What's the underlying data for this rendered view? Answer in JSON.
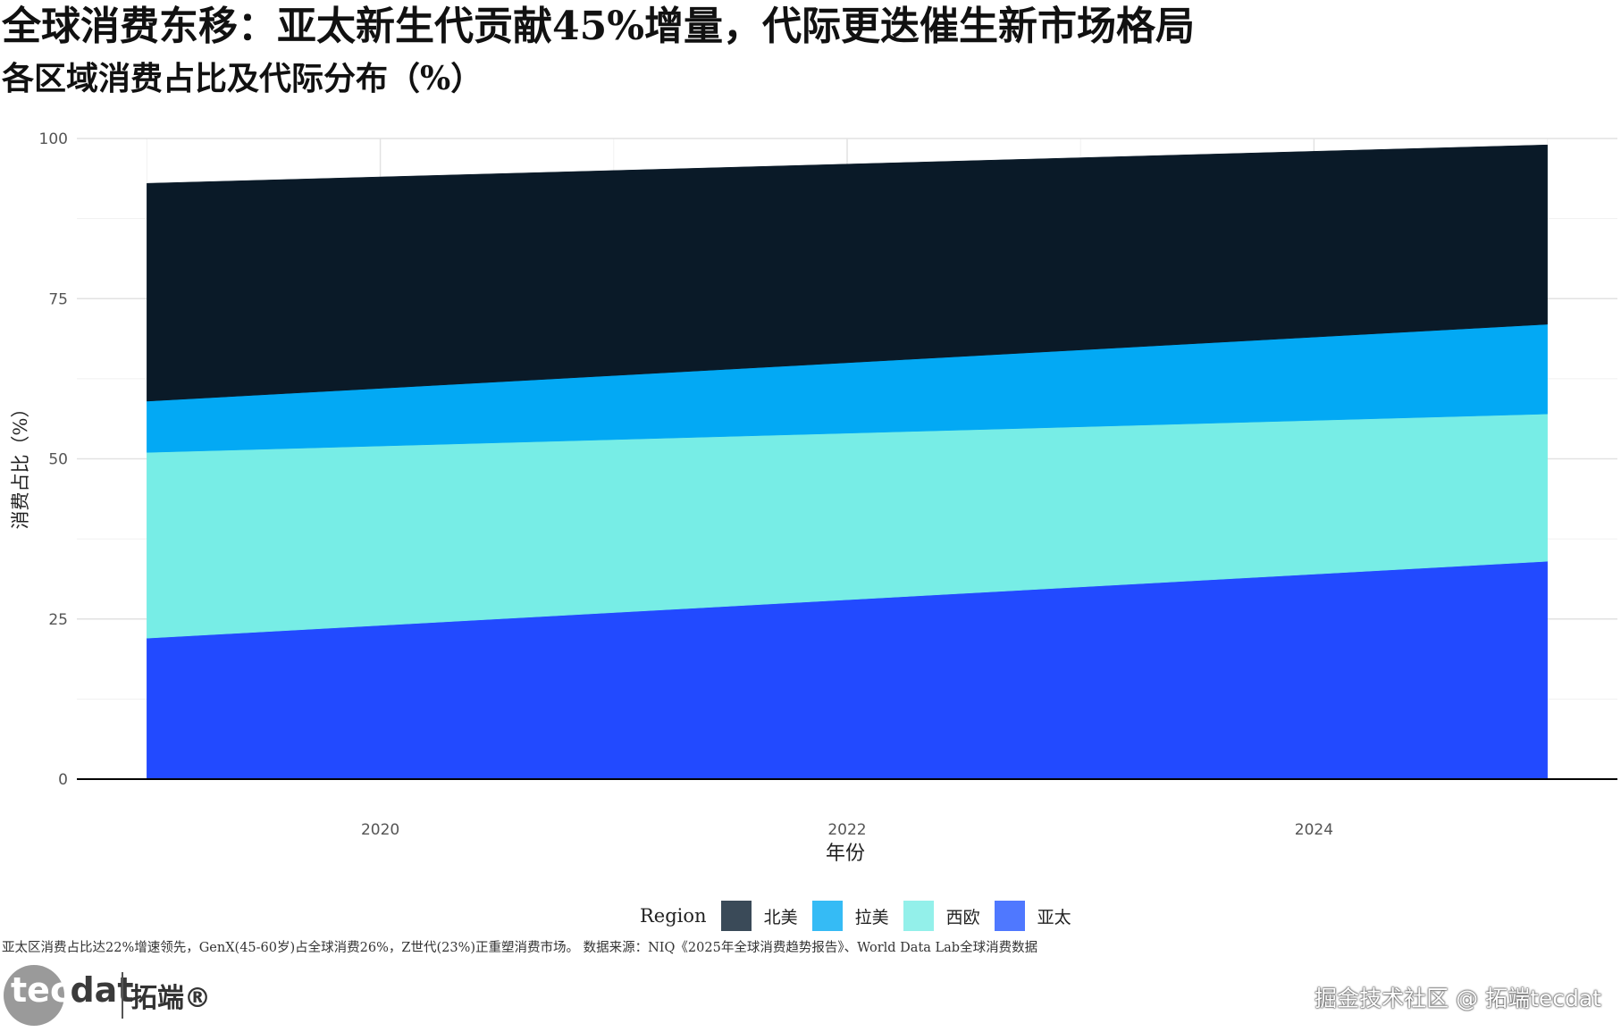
{
  "title": "全球消费东移：亚太新生代贡献45%增量，代际更迭催生新市场格局",
  "subtitle": "各区域消费占比及代际分布（%）",
  "caption": "亚太区消费占比达22%增速领先，GenX(45-60岁)占全球消费26%，Z世代(23%)正重塑消费市场。 数据来源：NIQ《2025年全球消费趋势报告》、World Data Lab全球消费数据",
  "logo": {
    "text_left": "tec",
    "text_right": "dat",
    "text_cn": "拓端®"
  },
  "watermark": "掘金技术社区 @ 拓端tecdat",
  "legend": {
    "title": "Region",
    "items": [
      {
        "label": "北美",
        "color": "#3a4a58"
      },
      {
        "label": "拉美",
        "color": "#35bbf5"
      },
      {
        "label": "西欧",
        "color": "#93f0ea"
      },
      {
        "label": "亚太",
        "color": "#4f78ff"
      }
    ]
  },
  "chart_data": {
    "type": "area",
    "stacked": true,
    "xlabel": "年份",
    "ylabel": "消费占比（%）",
    "x": [
      2019,
      2025
    ],
    "xlim": [
      2018.7,
      2025.3
    ],
    "ylim": [
      0,
      100
    ],
    "xticks": [
      2020,
      2022,
      2024
    ],
    "yticks": [
      0,
      25,
      50,
      75,
      100
    ],
    "grid": true,
    "legend_position": "bottom",
    "series": [
      {
        "name": "亚太",
        "values": [
          22,
          34
        ],
        "color": "#224aff"
      },
      {
        "name": "西欧",
        "values": [
          29,
          23
        ],
        "color": "#77ede6"
      },
      {
        "name": "拉美",
        "values": [
          8,
          14
        ],
        "color": "#03a9f4"
      },
      {
        "name": "北美",
        "values": [
          34,
          28
        ],
        "color": "#0a1a28"
      }
    ]
  }
}
